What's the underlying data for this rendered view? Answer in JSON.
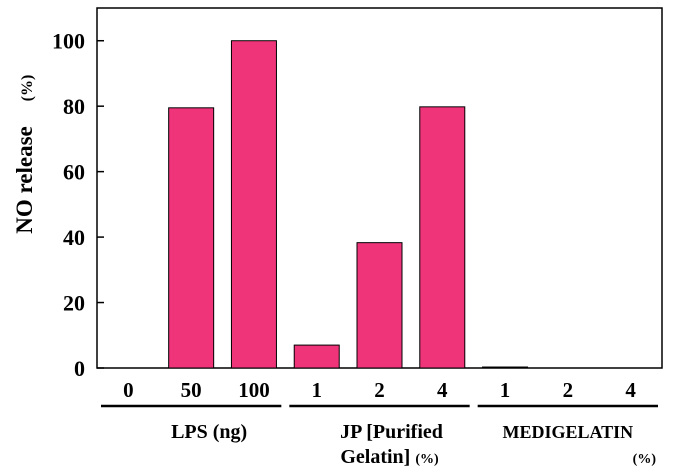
{
  "chart_data": {
    "type": "bar",
    "ylabel": "NO release",
    "ylabel_unit": "(%)",
    "xlabel": "",
    "ylim": [
      0,
      110
    ],
    "yticks": [
      0,
      20,
      40,
      60,
      80,
      100
    ],
    "grid": false,
    "legend": "none",
    "bar_color": "#f0347a",
    "categories": [
      "0",
      "50",
      "100",
      "1",
      "2",
      "4",
      "1",
      "2",
      "4"
    ],
    "values": [
      0,
      79.5,
      100,
      7,
      38.3,
      79.8,
      0.3,
      0,
      0
    ],
    "groups": [
      {
        "label": "LPS (ng)",
        "unit": "",
        "categories": [
          "0",
          "50",
          "100"
        ]
      },
      {
        "label": "JP [Purified",
        "label_line2": "Gelatin]",
        "unit": "(%)",
        "categories": [
          "1",
          "2",
          "4"
        ]
      },
      {
        "label": "MEDIGELATIN",
        "unit": "(%)",
        "categories": [
          "1",
          "2",
          "4"
        ]
      }
    ]
  }
}
